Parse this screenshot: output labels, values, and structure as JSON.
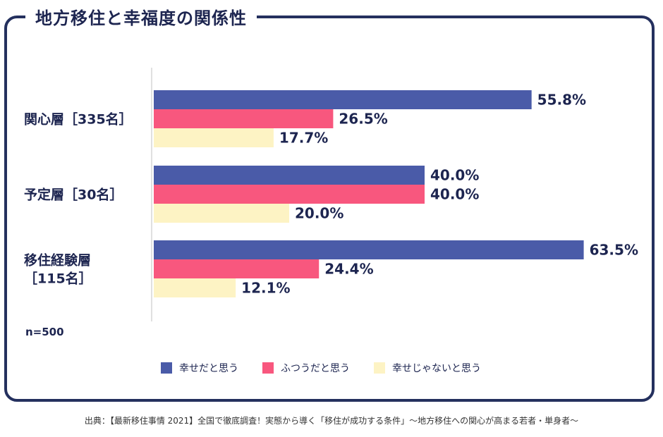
{
  "title": "地方移住と幸福度の関係性",
  "sample_size": "n=500",
  "source": "出典：【最新移住事情 2021】全国で徹底調査！実態から導く「移住が成功する条件」〜地方移住への関心が高まる若者・単身者〜",
  "colors": {
    "frame": "#24305e",
    "text": "#1d2550",
    "series": [
      "#4a5ba8",
      "#f8577e",
      "#fdf3c4"
    ]
  },
  "chart_data": {
    "type": "bar",
    "orientation": "horizontal",
    "categories": [
      [
        "関心層［335名］"
      ],
      [
        "予定層［30名］"
      ],
      [
        "移住経験層",
        "［115名］"
      ]
    ],
    "series": [
      {
        "name": "幸せだと思う",
        "values": [
          55.8,
          40.0,
          63.5
        ],
        "labels": [
          "55.8%",
          "40.0%",
          "63.5%"
        ]
      },
      {
        "name": "ふつうだと思う",
        "values": [
          26.5,
          40.0,
          24.4
        ],
        "labels": [
          "26.5%",
          "40.0%",
          "24.4%"
        ]
      },
      {
        "name": "幸せじゃないと思う",
        "values": [
          17.7,
          20.0,
          12.1
        ],
        "labels": [
          "17.7%",
          "20.0%",
          "12.1%"
        ]
      }
    ],
    "xlim": [
      0,
      100
    ],
    "grid": false,
    "legend_position": "bottom"
  }
}
